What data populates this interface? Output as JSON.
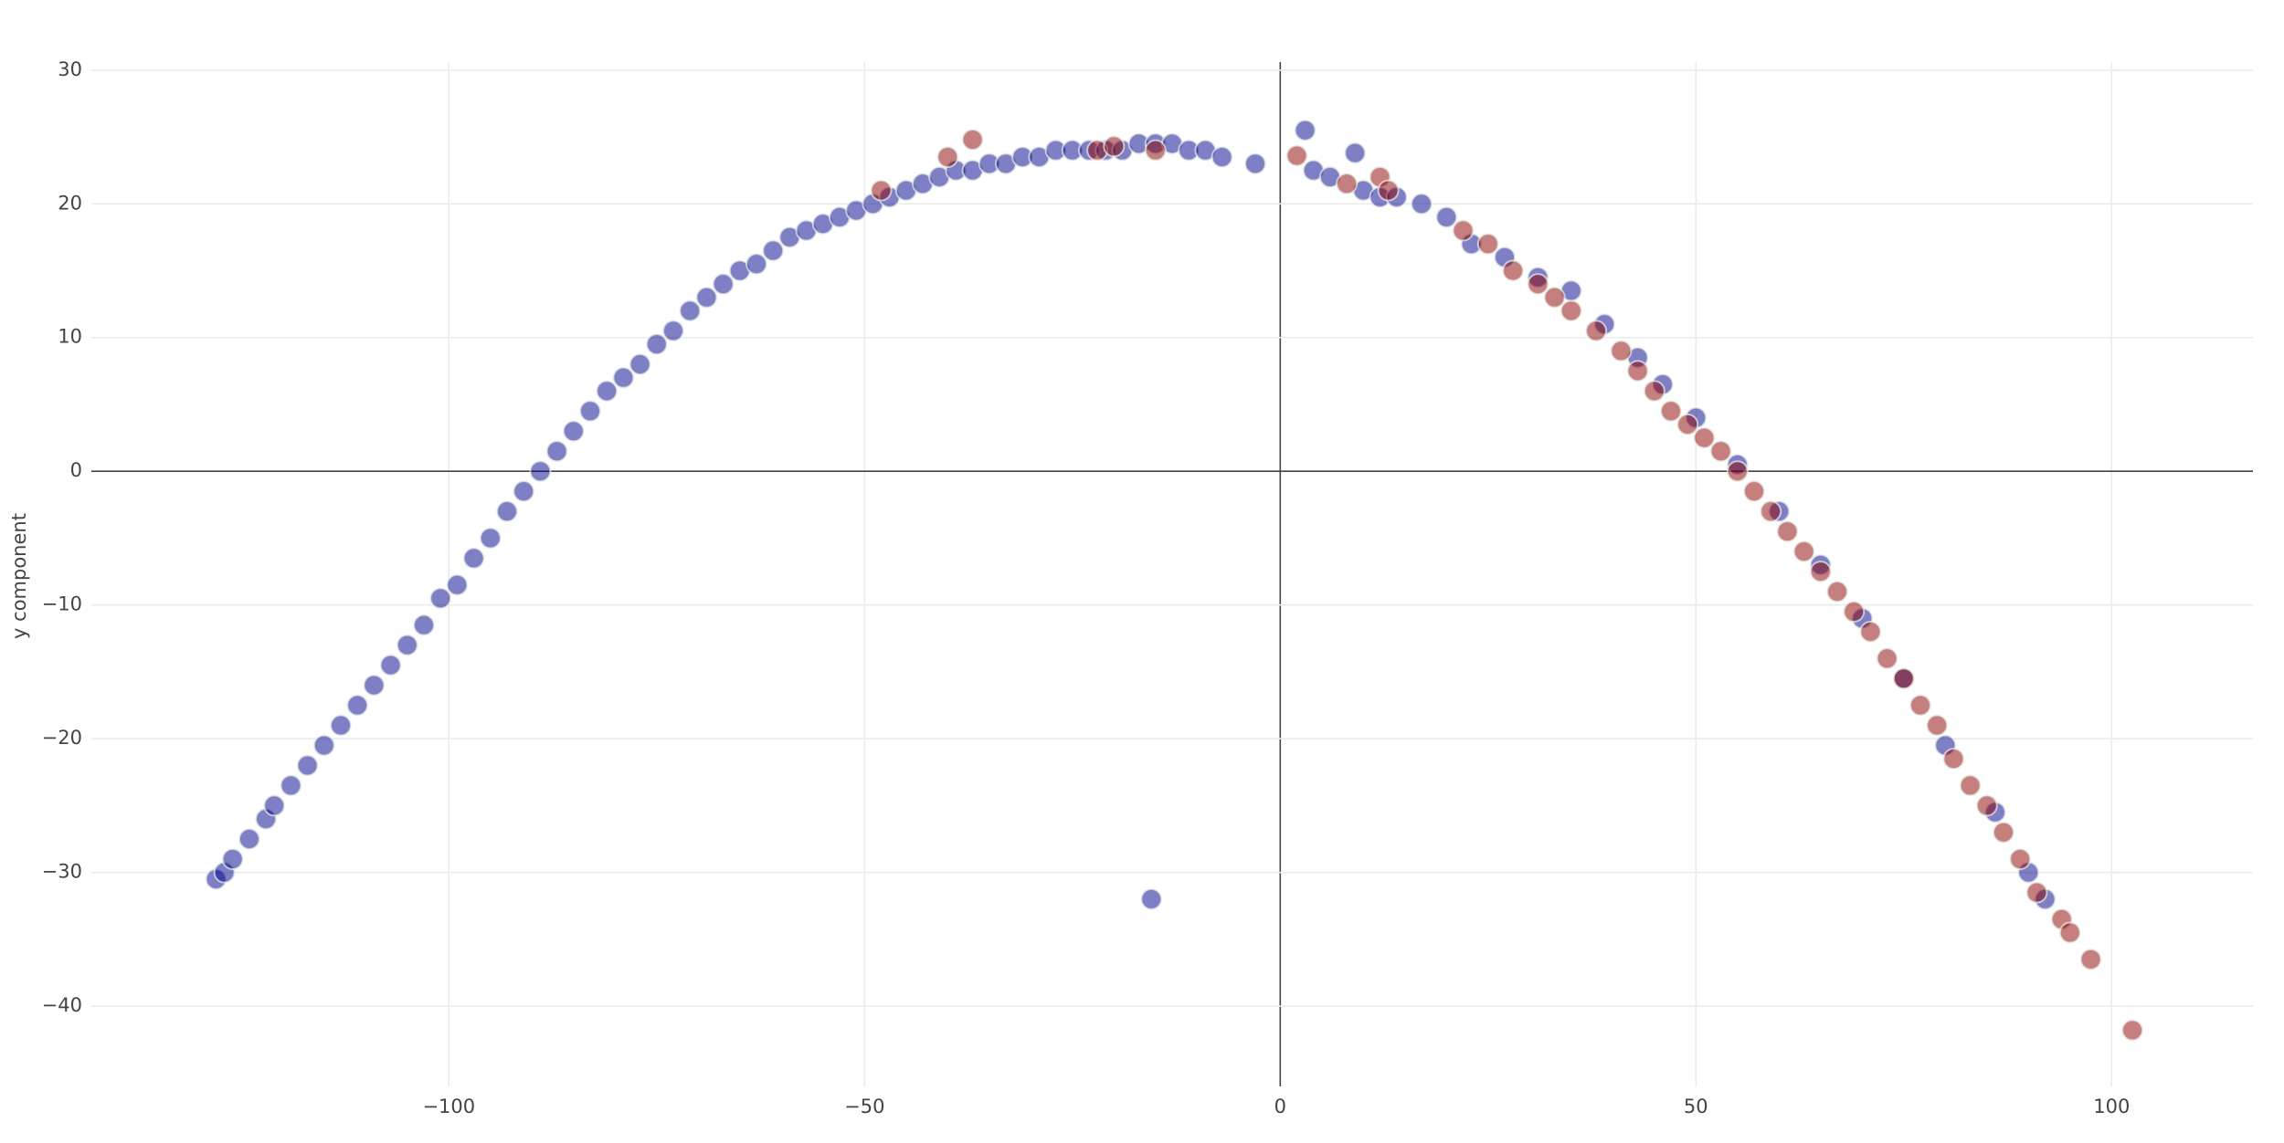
{
  "chart_data": {
    "type": "scatter",
    "y_label": "y component",
    "xlim": [
      -143,
      117
    ],
    "ylim": [
      -46,
      30.6
    ],
    "xticks": [
      {
        "value": -100,
        "label": "−100"
      },
      {
        "value": -50,
        "label": "−50"
      },
      0,
      50,
      100
    ],
    "yticks": [
      {
        "value": -40,
        "label": "−40"
      },
      {
        "value": -30,
        "label": "−30"
      },
      {
        "value": -20,
        "label": "−20"
      },
      {
        "value": -10,
        "label": "−10"
      },
      0,
      10,
      20,
      30
    ],
    "grid": true,
    "series": [
      {
        "color": "#00008b",
        "x": [
          -128,
          -127,
          -126,
          -124,
          -122,
          -121,
          -119,
          -117,
          -115,
          -113,
          -111,
          -109,
          -107,
          -105,
          -103,
          -101,
          -99,
          -97,
          -95,
          -93,
          -91,
          -89,
          -87,
          -85,
          -83,
          -81,
          -79,
          -77,
          -75,
          -73,
          -71,
          -69,
          -67,
          -65,
          -63,
          -61,
          -59,
          -57,
          -55,
          -53,
          -51,
          -49,
          -47,
          -45,
          -43,
          -41,
          -39,
          -37,
          -35,
          -33,
          -31,
          -29,
          -27,
          -25,
          -23,
          -21,
          -19,
          -17,
          -15,
          -13,
          -11,
          -9,
          -7,
          -3,
          -15.5,
          3,
          4,
          6,
          9,
          10,
          12,
          14,
          17,
          20,
          23,
          27,
          31,
          35,
          39,
          43,
          46,
          50,
          55,
          60,
          65,
          70,
          75,
          80,
          86,
          90,
          92
        ],
        "values": [
          -30.5,
          -30,
          -29,
          -27.5,
          -26,
          -25,
          -23.5,
          -22,
          -20.5,
          -19,
          -17.5,
          -16,
          -14.5,
          -13,
          -11.5,
          -9.5,
          -8.5,
          -6.5,
          -5,
          -3,
          -1.5,
          0,
          1.5,
          3,
          4.5,
          6,
          7,
          8,
          9.5,
          10.5,
          12,
          13,
          14,
          15,
          15.5,
          16.5,
          17.5,
          18,
          18.5,
          19,
          19.5,
          20,
          20.5,
          21,
          21.5,
          22,
          22.5,
          22.5,
          23,
          23,
          23.5,
          23.5,
          24,
          24,
          24,
          24,
          24,
          24.5,
          24.5,
          24.5,
          24,
          24,
          23.5,
          23,
          -32,
          25.5,
          22.5,
          22,
          23.8,
          21,
          20.5,
          20.5,
          20,
          19,
          17,
          16,
          14.5,
          13.5,
          11,
          8.5,
          6.5,
          4,
          0.5,
          -3,
          -7,
          -11,
          -15.5,
          -20.5,
          -25.5,
          -30,
          -32
        ]
      },
      {
        "color": "#8b0000",
        "x": [
          -37,
          -40,
          -48,
          -22,
          -20,
          -15,
          2,
          8,
          12,
          13,
          22,
          25,
          28,
          31,
          33,
          35,
          38,
          41,
          43,
          45,
          47,
          49,
          51,
          53,
          55,
          57,
          59,
          61,
          63,
          65,
          67,
          69,
          71,
          73,
          75,
          77,
          79,
          81,
          83,
          85,
          87,
          89,
          91,
          94,
          95,
          97.5,
          102.5
        ],
        "values": [
          24.8,
          23.5,
          21,
          24,
          24.3,
          24,
          23.6,
          21.5,
          22,
          21,
          18,
          17,
          15,
          14,
          13,
          12,
          10.5,
          9,
          7.5,
          6,
          4.5,
          3.5,
          2.5,
          1.5,
          0,
          -1.5,
          -3,
          -4.5,
          -6,
          -7.5,
          -9,
          -10.5,
          -12,
          -14,
          -15.5,
          -17.5,
          -19,
          -21.5,
          -23.5,
          -25,
          -27,
          -29,
          -31.5,
          -33.5,
          -34.5,
          -36.5,
          -41.8
        ]
      }
    ]
  }
}
